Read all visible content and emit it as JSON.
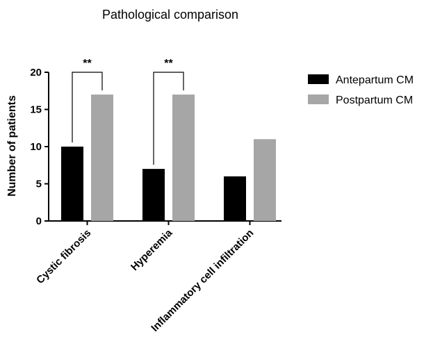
{
  "chart_data": {
    "type": "bar",
    "title": "Pathological comparison",
    "xlabel": "",
    "ylabel": "Number of patients",
    "categories": [
      "Cystic fibrosis",
      "Hyperemia",
      "Inflammatory cell infiltration"
    ],
    "series": [
      {
        "name": "Antepartum CM",
        "color": "#000000",
        "values": [
          10,
          7,
          6
        ]
      },
      {
        "name": "Postpartum CM",
        "color": "#a6a6a6",
        "values": [
          17,
          17,
          11
        ]
      }
    ],
    "ylim": [
      0,
      20
    ],
    "yticks": [
      0,
      5,
      10,
      15,
      20
    ],
    "grid": false,
    "legend_position": "right",
    "annotations": [
      {
        "category": "Cystic fibrosis",
        "text": "**"
      },
      {
        "category": "Hyperemia",
        "text": "**"
      }
    ]
  }
}
